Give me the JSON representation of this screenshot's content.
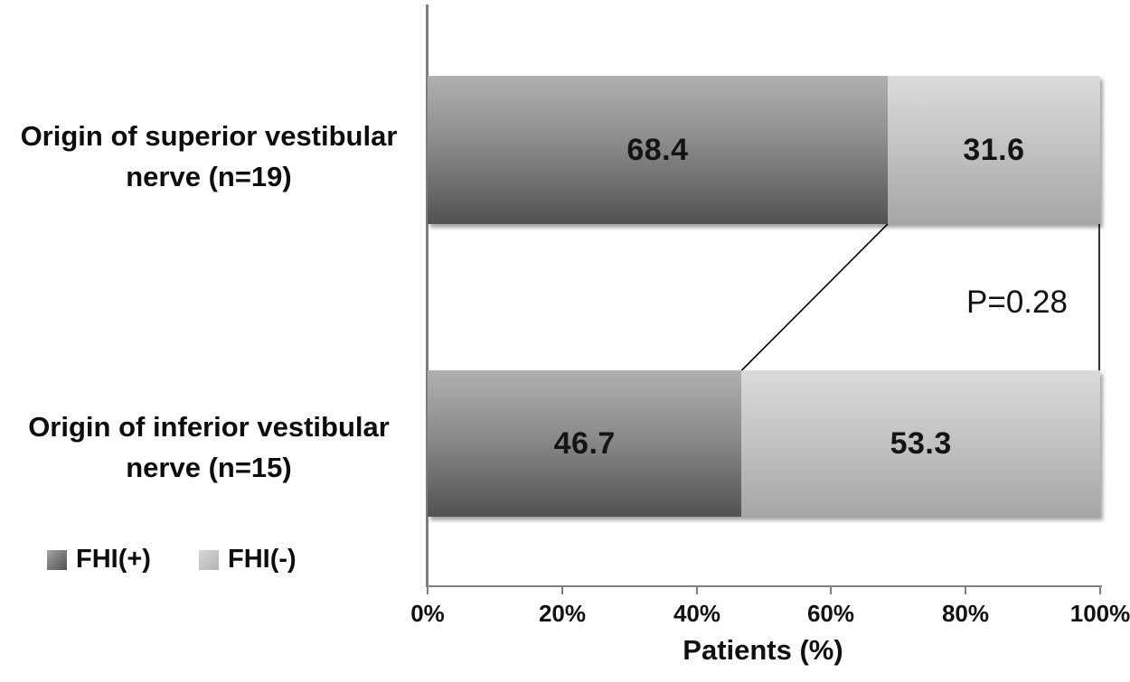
{
  "chart_data": {
    "type": "bar",
    "orientation": "horizontal",
    "stacked": true,
    "title": "",
    "xlabel": "Patients (%)",
    "ylabel": "",
    "xlim": [
      0,
      100
    ],
    "x_ticks": [
      "0%",
      "20%",
      "40%",
      "60%",
      "80%",
      "100%"
    ],
    "grid": false,
    "legend_position": "bottom-left",
    "categories": [
      "Origin of superior vestibular nerve (n=19)",
      "Origin of inferior vestibular nerve (n=15)"
    ],
    "category_lines": [
      [
        "Origin of superior vestibular",
        "nerve (n=19)"
      ],
      [
        "Origin of inferior vestibular",
        "nerve (n=15)"
      ]
    ],
    "series": [
      {
        "name": "FHI(+)",
        "values": [
          68.4,
          46.7
        ],
        "color_top": "#b0b0b0",
        "color_bottom": "#525252"
      },
      {
        "name": "FHI(-)",
        "values": [
          31.6,
          53.3
        ],
        "color_top": "#dbdbdb",
        "color_bottom": "#a6a6a6"
      }
    ],
    "annotation": "P=0.28",
    "axis_color": "#7f7f7f",
    "connector_line_color": "#000000"
  }
}
